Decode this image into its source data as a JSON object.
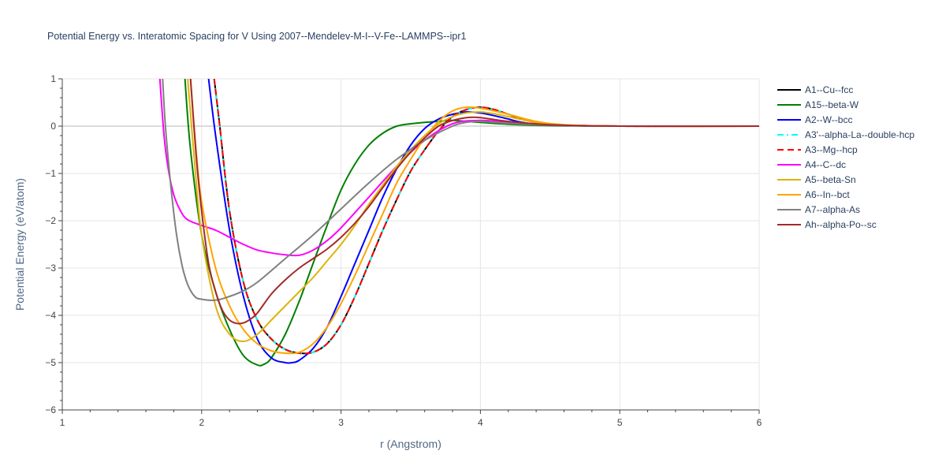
{
  "chart_data": {
    "type": "line",
    "title": "Potential Energy vs. Interatomic Spacing for V Using 2007--Mendelev-M-I--V-Fe--LAMMPS--ipr1",
    "xlabel": "r (Angstrom)",
    "ylabel": "Potential Energy (eV/atom)",
    "xlim": [
      1,
      6
    ],
    "ylim": [
      -6,
      1
    ],
    "xticks": [
      "1",
      "2",
      "3",
      "4",
      "5",
      "6"
    ],
    "yticks": [
      "1",
      "0",
      "−1",
      "−2",
      "−3",
      "−4",
      "−5",
      "−6"
    ],
    "grid": true,
    "legend_position": "right",
    "series": [
      {
        "name": "A1--Cu--fcc",
        "color": "#000000",
        "dash": "solid",
        "x": [
          2.09,
          2.13,
          2.2,
          2.3,
          2.4,
          2.5,
          2.6,
          2.7,
          2.8,
          2.9,
          3.0,
          3.1,
          3.2,
          3.3,
          3.4,
          3.5,
          3.6,
          3.7,
          3.8,
          3.9,
          4.0,
          4.1,
          4.2,
          4.3,
          4.4,
          4.6,
          5.0,
          5.5,
          6.0
        ],
        "y": [
          1.0,
          0.0,
          -1.8,
          -3.3,
          -4.1,
          -4.5,
          -4.72,
          -4.8,
          -4.78,
          -4.6,
          -4.2,
          -3.6,
          -2.9,
          -2.2,
          -1.55,
          -0.95,
          -0.5,
          -0.1,
          0.2,
          0.35,
          0.4,
          0.35,
          0.25,
          0.15,
          0.08,
          0.02,
          0.0,
          0.0,
          0.0
        ]
      },
      {
        "name": "A15--beta-W",
        "color": "#008000",
        "dash": "solid",
        "x": [
          1.88,
          1.92,
          2.0,
          2.1,
          2.2,
          2.3,
          2.4,
          2.45,
          2.5,
          2.6,
          2.7,
          2.8,
          2.9,
          3.0,
          3.1,
          3.2,
          3.3,
          3.4,
          3.5,
          3.6,
          3.7,
          3.8,
          3.9,
          4.0,
          4.2,
          4.5,
          5.0,
          6.0
        ],
        "y": [
          1.0,
          -0.5,
          -2.3,
          -3.5,
          -4.3,
          -4.85,
          -5.05,
          -5.03,
          -4.9,
          -4.4,
          -3.7,
          -2.9,
          -2.1,
          -1.35,
          -0.8,
          -0.4,
          -0.15,
          0.0,
          0.05,
          0.08,
          0.1,
          0.12,
          0.1,
          0.08,
          0.04,
          0.01,
          0.0,
          0.0
        ]
      },
      {
        "name": "A2--W--bcc",
        "color": "#0000ff",
        "dash": "solid",
        "x": [
          2.05,
          2.1,
          2.2,
          2.3,
          2.4,
          2.5,
          2.6,
          2.65,
          2.7,
          2.8,
          2.9,
          3.0,
          3.1,
          3.2,
          3.3,
          3.4,
          3.5,
          3.6,
          3.7,
          3.8,
          3.9,
          4.0,
          4.1,
          4.2,
          4.3,
          4.5,
          5.0,
          5.5,
          6.0
        ],
        "y": [
          1.0,
          -0.2,
          -2.2,
          -3.6,
          -4.5,
          -4.9,
          -5.0,
          -5.0,
          -4.95,
          -4.7,
          -4.25,
          -3.6,
          -2.9,
          -2.2,
          -1.5,
          -0.9,
          -0.4,
          -0.05,
          0.15,
          0.25,
          0.3,
          0.28,
          0.22,
          0.15,
          0.08,
          0.02,
          0.0,
          0.0,
          0.0
        ]
      },
      {
        "name": "A3'--alpha-La--double-hcp",
        "color": "#00ffff",
        "dash": "dashdot",
        "x": [
          2.09,
          2.13,
          2.2,
          2.3,
          2.4,
          2.5,
          2.6,
          2.7,
          2.8,
          2.9,
          3.0,
          3.1,
          3.2,
          3.3,
          3.4,
          3.5,
          3.6,
          3.7,
          3.8,
          3.9,
          4.0,
          4.1,
          4.2,
          4.3,
          4.4,
          4.6,
          5.0,
          5.5,
          6.0
        ],
        "y": [
          1.0,
          0.0,
          -1.8,
          -3.3,
          -4.1,
          -4.5,
          -4.72,
          -4.8,
          -4.78,
          -4.6,
          -4.2,
          -3.6,
          -2.9,
          -2.2,
          -1.55,
          -0.95,
          -0.5,
          -0.1,
          0.2,
          0.35,
          0.4,
          0.35,
          0.25,
          0.15,
          0.08,
          0.02,
          0.0,
          0.0,
          0.0
        ]
      },
      {
        "name": "A3--Mg--hcp",
        "color": "#ff0000",
        "dash": "dash",
        "x": [
          2.09,
          2.13,
          2.2,
          2.3,
          2.4,
          2.5,
          2.6,
          2.7,
          2.8,
          2.9,
          3.0,
          3.1,
          3.2,
          3.3,
          3.4,
          3.5,
          3.6,
          3.7,
          3.8,
          3.9,
          4.0,
          4.1,
          4.2,
          4.3,
          4.4,
          4.6,
          5.0,
          5.5,
          6.0
        ],
        "y": [
          1.0,
          0.0,
          -1.8,
          -3.3,
          -4.1,
          -4.5,
          -4.72,
          -4.8,
          -4.78,
          -4.6,
          -4.2,
          -3.6,
          -2.9,
          -2.2,
          -1.55,
          -0.95,
          -0.5,
          -0.1,
          0.2,
          0.35,
          0.4,
          0.35,
          0.25,
          0.15,
          0.08,
          0.02,
          0.0,
          0.0,
          0.0
        ]
      },
      {
        "name": "A4--C--dc",
        "color": "#ff00ff",
        "dash": "solid",
        "x": [
          1.7,
          1.73,
          1.76,
          1.8,
          1.85,
          1.9,
          2.0,
          2.1,
          2.2,
          2.3,
          2.4,
          2.5,
          2.6,
          2.7,
          2.8,
          2.9,
          3.0,
          3.2,
          3.4,
          3.6,
          3.8,
          4.0,
          4.2,
          4.5,
          5.0,
          6.0
        ],
        "y": [
          1.0,
          -0.2,
          -0.9,
          -1.45,
          -1.8,
          -1.98,
          -2.1,
          -2.2,
          -2.35,
          -2.5,
          -2.62,
          -2.68,
          -2.72,
          -2.73,
          -2.62,
          -2.42,
          -2.15,
          -1.5,
          -0.85,
          -0.3,
          0.05,
          0.12,
          0.08,
          0.03,
          0.0,
          0.0
        ]
      },
      {
        "name": "A5--beta-Sn",
        "color": "#dbb40c",
        "dash": "solid",
        "x": [
          1.9,
          1.95,
          2.0,
          2.1,
          2.2,
          2.3,
          2.4,
          2.5,
          2.6,
          2.7,
          2.8,
          2.9,
          3.0,
          3.1,
          3.2,
          3.3,
          3.4,
          3.5,
          3.6,
          3.7,
          3.8,
          3.9,
          4.0,
          4.1,
          4.2,
          4.4,
          4.6,
          5.0,
          6.0
        ],
        "y": [
          1.0,
          -0.8,
          -2.3,
          -3.8,
          -4.4,
          -4.55,
          -4.4,
          -4.1,
          -3.8,
          -3.5,
          -3.2,
          -2.85,
          -2.5,
          -2.1,
          -1.65,
          -1.25,
          -0.85,
          -0.5,
          -0.2,
          0.05,
          0.2,
          0.28,
          0.3,
          0.26,
          0.2,
          0.08,
          0.02,
          0.0,
          0.0
        ]
      },
      {
        "name": "A6--In--bct",
        "color": "#ffa500",
        "dash": "solid",
        "x": [
          1.92,
          1.96,
          2.0,
          2.1,
          2.2,
          2.3,
          2.4,
          2.5,
          2.6,
          2.7,
          2.8,
          2.9,
          3.0,
          3.1,
          3.2,
          3.3,
          3.4,
          3.5,
          3.6,
          3.7,
          3.8,
          3.9,
          4.0,
          4.1,
          4.2,
          4.4,
          4.6,
          5.0,
          6.0
        ],
        "y": [
          1.0,
          -0.5,
          -1.6,
          -3.0,
          -3.8,
          -4.3,
          -4.6,
          -4.75,
          -4.8,
          -4.78,
          -4.6,
          -4.25,
          -3.75,
          -3.15,
          -2.5,
          -1.85,
          -1.2,
          -0.7,
          -0.25,
          0.1,
          0.32,
          0.4,
          0.38,
          0.32,
          0.25,
          0.1,
          0.03,
          0.0,
          0.0
        ]
      },
      {
        "name": "A7--alpha-As",
        "color": "#808080",
        "dash": "solid",
        "x": [
          1.72,
          1.74,
          1.78,
          1.82,
          1.86,
          1.9,
          1.95,
          2.0,
          2.1,
          2.2,
          2.3,
          2.4,
          2.6,
          2.8,
          3.0,
          3.2,
          3.4,
          3.6,
          3.8,
          3.9,
          4.0,
          4.2,
          4.5,
          5.0,
          6.0
        ],
        "y": [
          1.0,
          0.0,
          -1.3,
          -2.3,
          -2.95,
          -3.35,
          -3.6,
          -3.66,
          -3.68,
          -3.6,
          -3.48,
          -3.3,
          -2.8,
          -2.3,
          -1.75,
          -1.2,
          -0.7,
          -0.3,
          0.0,
          0.08,
          0.1,
          0.06,
          0.02,
          0.0,
          0.0
        ]
      },
      {
        "name": "Ah--alpha-Po--sc",
        "color": "#a52a2a",
        "dash": "solid",
        "x": [
          1.92,
          1.96,
          2.0,
          2.05,
          2.1,
          2.15,
          2.2,
          2.25,
          2.3,
          2.35,
          2.4,
          2.5,
          2.6,
          2.7,
          2.8,
          2.9,
          3.0,
          3.1,
          3.2,
          3.3,
          3.4,
          3.5,
          3.6,
          3.7,
          3.8,
          3.9,
          4.0,
          4.2,
          4.5,
          5.0,
          6.0
        ],
        "y": [
          1.0,
          -0.6,
          -1.8,
          -2.9,
          -3.5,
          -3.9,
          -4.1,
          -4.17,
          -4.16,
          -4.08,
          -3.95,
          -3.55,
          -3.25,
          -3.0,
          -2.8,
          -2.6,
          -2.35,
          -2.05,
          -1.7,
          -1.3,
          -0.9,
          -0.55,
          -0.25,
          0.0,
          0.12,
          0.18,
          0.18,
          0.1,
          0.03,
          0.0,
          0.0
        ]
      }
    ]
  }
}
